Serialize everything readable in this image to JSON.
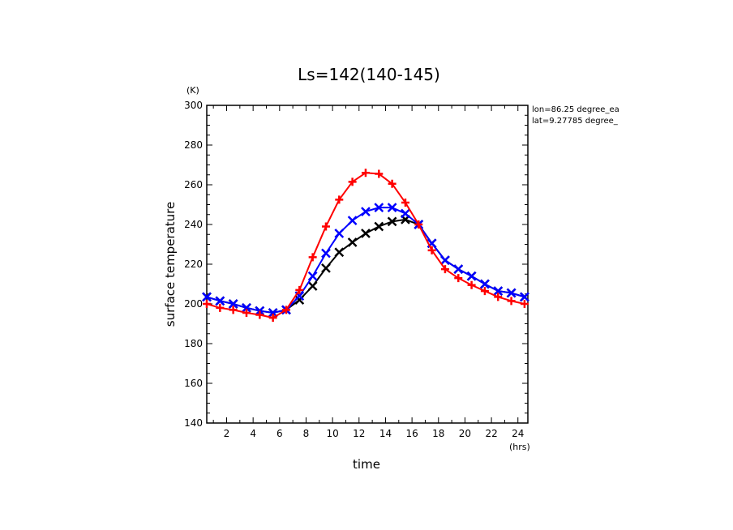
{
  "chart_data": {
    "type": "line",
    "title": "Ls=142(140-145)",
    "xlabel": "time",
    "ylabel": "surface temperature",
    "x_unit": "(hrs)",
    "y_unit": "(K)",
    "xlim": [
      0.5,
      24.75
    ],
    "ylim": [
      140,
      300
    ],
    "x_ticks": [
      2,
      4,
      6,
      8,
      10,
      12,
      14,
      16,
      18,
      20,
      22,
      24
    ],
    "y_ticks": [
      140,
      160,
      180,
      200,
      220,
      240,
      260,
      280,
      300
    ],
    "annotations": [
      "lon=86.25 degree_ea",
      "lat=9.27785 degree_"
    ],
    "x": [
      0.5,
      1.5,
      2.5,
      3.5,
      4.5,
      5.5,
      6.5,
      7.5,
      8.5,
      9.5,
      10.5,
      11.5,
      12.5,
      13.5,
      14.5,
      15.5,
      16.5,
      17.5,
      18.5,
      19.5,
      20.5,
      21.5,
      22.5,
      23.5,
      24.5
    ],
    "series": [
      {
        "color": "#000000",
        "marker": "x",
        "values": [
          203.5,
          201.5,
          200,
          198,
          196.5,
          195.5,
          197,
          202,
          209,
          218,
          226,
          231,
          235.5,
          239,
          241.5,
          242.5,
          240,
          230.5,
          222,
          217.5,
          214,
          210,
          206.5,
          205.5,
          203.5
        ]
      },
      {
        "color": "#0000ff",
        "marker": "x",
        "values": [
          203.5,
          201.5,
          200,
          198,
          196.5,
          195.5,
          197,
          204,
          214,
          225.5,
          235.5,
          242,
          246.5,
          248.5,
          248.5,
          245.5,
          240,
          230.5,
          222,
          217.5,
          214,
          210,
          206.5,
          205.5,
          203.5
        ]
      },
      {
        "color": "#ff0000",
        "marker": "+",
        "values": [
          200,
          198,
          197,
          195.5,
          194.5,
          193,
          197,
          207,
          223.5,
          239,
          252.5,
          261.5,
          266,
          265.5,
          260.5,
          251,
          240,
          227,
          217.5,
          213,
          209.5,
          206.5,
          203.5,
          201.5,
          200
        ]
      }
    ]
  }
}
